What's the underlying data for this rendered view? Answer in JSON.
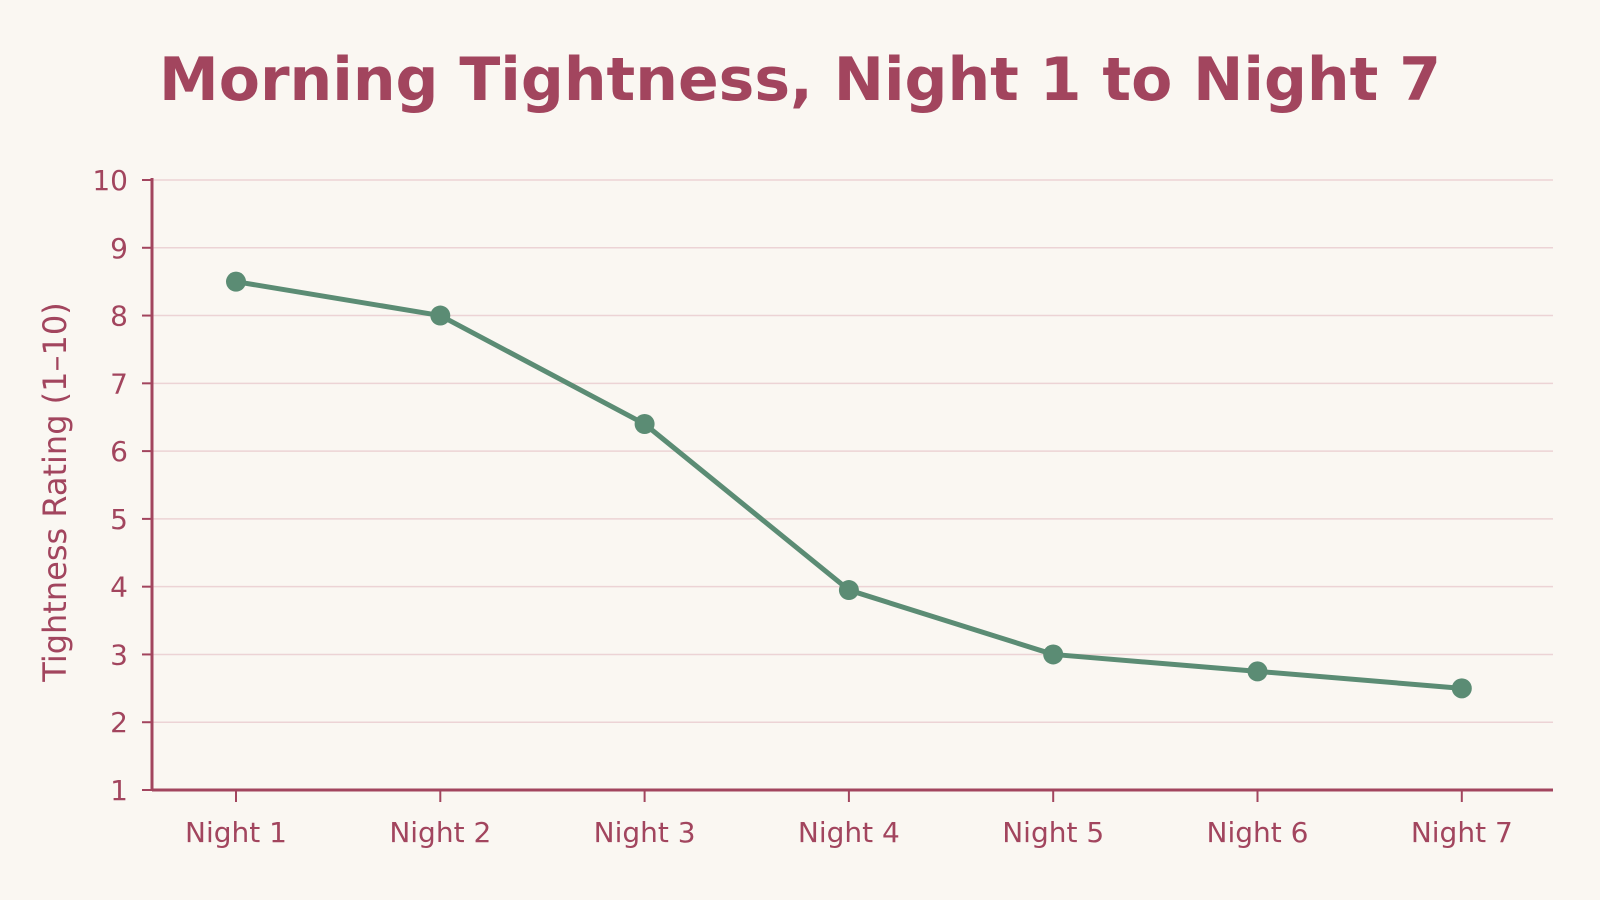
{
  "colors": {
    "background": "#faf7f2",
    "text": "#a2455e",
    "axis": "#a2455e",
    "grid": "#ecd3d5",
    "series": "#5b8c74"
  },
  "chart_data": {
    "type": "line",
    "title": "Morning Tightness, Night 1 to Night 7",
    "xlabel": "",
    "ylabel": "Tightness Rating (1–10)",
    "categories": [
      "Night 1",
      "Night 2",
      "Night 3",
      "Night 4",
      "Night 5",
      "Night 6",
      "Night 7"
    ],
    "series": [
      {
        "values": [
          8.5,
          8.0,
          6.4,
          3.95,
          3.0,
          2.75,
          2.5
        ]
      }
    ],
    "ylim": [
      1,
      10
    ],
    "yticks": [
      1,
      2,
      3,
      4,
      5,
      6,
      7,
      8,
      9,
      10
    ],
    "grid": true,
    "legend": "none"
  }
}
